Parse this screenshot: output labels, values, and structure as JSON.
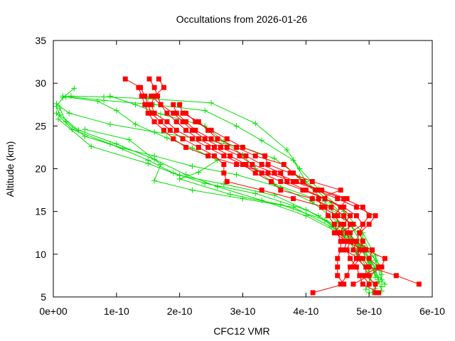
{
  "chart_data": {
    "type": "line",
    "title": "Occultations from 2026-01-26",
    "xlabel": "CFC12 VMR",
    "ylabel": "Altitude (km)",
    "xlim": [
      0,
      6e-10
    ],
    "ylim": [
      5,
      35
    ],
    "x_ticks": [
      0,
      1e-10,
      2e-10,
      3e-10,
      4e-10,
      5e-10,
      6e-10
    ],
    "x_tick_labels": [
      "0e+00",
      "1e-10",
      "2e-10",
      "3e-10",
      "4e-10",
      "5e-10",
      "6e-10"
    ],
    "y_ticks": [
      5,
      10,
      15,
      20,
      25,
      30,
      35
    ],
    "y_tick_labels": [
      "5",
      "10",
      "15",
      "20",
      "25",
      "30",
      "35"
    ],
    "grid": false,
    "colors": {
      "red": "#ff0000",
      "green": "#00e000"
    },
    "red_series": [
      [
        [
          1.14e-10,
          30.5
        ],
        [
          1.38e-10,
          29.5
        ],
        [
          1.45e-10,
          28.5
        ],
        [
          1.5e-10,
          27.5
        ],
        [
          1.55e-10,
          26.5
        ],
        [
          1.7e-10,
          25.5
        ],
        [
          1.85e-10,
          24.5
        ],
        [
          2.05e-10,
          23.5
        ],
        [
          2.3e-10,
          22.5
        ],
        [
          2.55e-10,
          21.5
        ],
        [
          2.7e-10,
          20.5
        ],
        [
          2.7e-10,
          19.5
        ],
        [
          2.75e-10,
          18.5
        ],
        [
          3.3e-10,
          17.5
        ],
        [
          3.8e-10,
          16.5
        ],
        [
          4.3e-10,
          15.5
        ],
        [
          4.35e-10,
          14.5
        ],
        [
          4.45e-10,
          13.5
        ],
        [
          4.5e-10,
          12.5
        ],
        [
          4.55e-10,
          11.5
        ],
        [
          4.55e-10,
          10.5
        ],
        [
          4.5e-10,
          9.5
        ],
        [
          4.5e-10,
          8.5
        ],
        [
          4.5e-10,
          7.5
        ],
        [
          4.6e-10,
          6.5
        ],
        [
          4.11e-10,
          5.5
        ]
      ],
      [
        [
          1.52e-10,
          30.5
        ],
        [
          1.6e-10,
          29.5
        ],
        [
          1.65e-10,
          28.5
        ],
        [
          1.7e-10,
          27.5
        ],
        [
          1.8e-10,
          26.5
        ],
        [
          1.95e-10,
          25.5
        ],
        [
          2.1e-10,
          24.5
        ],
        [
          2.3e-10,
          23.5
        ],
        [
          2.55e-10,
          22.5
        ],
        [
          2.8e-10,
          21.5
        ],
        [
          3.05e-10,
          20.5
        ],
        [
          3.3e-10,
          19.5
        ],
        [
          3.6e-10,
          18.5
        ],
        [
          3.95e-10,
          17.5
        ],
        [
          4.3e-10,
          16.5
        ],
        [
          4.6e-10,
          15.5
        ],
        [
          4.8e-10,
          14.5
        ],
        [
          4.9e-10,
          13.5
        ],
        [
          4.85e-10,
          12.5
        ],
        [
          4.8e-10,
          11.5
        ],
        [
          4.75e-10,
          10.5
        ],
        [
          4.9e-10,
          9.5
        ],
        [
          5e-10,
          8.5
        ],
        [
          5.43e-10,
          7.5
        ],
        [
          5.79e-10,
          6.5
        ]
      ],
      [
        [
          1.67e-10,
          30.5
        ],
        [
          1.75e-10,
          29.5
        ],
        [
          1.6e-10,
          28.5
        ],
        [
          1.55e-10,
          27.5
        ],
        [
          1.6e-10,
          26.5
        ],
        [
          1.8e-10,
          25.5
        ],
        [
          1.95e-10,
          24.5
        ],
        [
          2.2e-10,
          23.5
        ],
        [
          2.45e-10,
          22.5
        ],
        [
          2.7e-10,
          21.5
        ],
        [
          3e-10,
          20.5
        ],
        [
          3.2e-10,
          19.5
        ],
        [
          3.45e-10,
          18.5
        ],
        [
          3.6e-10,
          17.5
        ],
        [
          4.1e-10,
          16.5
        ],
        [
          4.4e-10,
          15.5
        ],
        [
          4.6e-10,
          14.5
        ],
        [
          4.7e-10,
          13.5
        ],
        [
          4.65e-10,
          12.5
        ],
        [
          4.7e-10,
          11.5
        ],
        [
          4.65e-10,
          10.5
        ],
        [
          4.7e-10,
          9.5
        ],
        [
          4.8e-10,
          8.5
        ],
        [
          4.85e-10,
          7.5
        ],
        [
          4.9e-10,
          6.5
        ],
        [
          5.15e-10,
          5.5
        ]
      ],
      [
        [
          1.35e-10,
          29.5
        ],
        [
          1.4e-10,
          28.5
        ],
        [
          1.45e-10,
          27.5
        ],
        [
          1.5e-10,
          26.5
        ],
        [
          1.6e-10,
          25.5
        ],
        [
          1.75e-10,
          24.5
        ],
        [
          1.9e-10,
          23.5
        ],
        [
          2.1e-10,
          22.5
        ],
        [
          2.45e-10,
          21.5
        ],
        [
          2.9e-10,
          20.5
        ],
        [
          3.4e-10,
          19.5
        ],
        [
          3.8e-10,
          18.5
        ],
        [
          4.2e-10,
          17.5
        ],
        [
          4.6e-10,
          16.5
        ],
        [
          4.9e-10,
          15.5
        ],
        [
          5e-10,
          14.5
        ],
        [
          4.9e-10,
          13.5
        ],
        [
          4.7e-10,
          12.5
        ],
        [
          4.75e-10,
          11.5
        ],
        [
          5.05e-10,
          10.5
        ],
        [
          5e-10,
          9.5
        ],
        [
          5.15e-10,
          8.5
        ],
        [
          4.9e-10,
          7.5
        ],
        [
          5e-10,
          6.5
        ]
      ],
      [
        [
          1.9e-10,
          27.5
        ],
        [
          1.95e-10,
          26.5
        ],
        [
          2.1e-10,
          25.5
        ],
        [
          2.25e-10,
          24.5
        ],
        [
          2.5e-10,
          23.5
        ],
        [
          2.75e-10,
          22.5
        ],
        [
          3.05e-10,
          21.5
        ],
        [
          3.3e-10,
          20.5
        ],
        [
          3.6e-10,
          19.5
        ],
        [
          3.7e-10,
          18.5
        ],
        [
          4e-10,
          17.5
        ],
        [
          4.3e-10,
          16.5
        ],
        [
          4.55e-10,
          15.5
        ],
        [
          4.7e-10,
          14.5
        ],
        [
          4.6e-10,
          13.5
        ],
        [
          4.55e-10,
          12.5
        ],
        [
          4.6e-10,
          11.5
        ],
        [
          4.95e-10,
          10.5
        ],
        [
          5.25e-10,
          9.5
        ],
        [
          5.2e-10,
          8.5
        ],
        [
          5e-10,
          7.5
        ],
        [
          4.75e-10,
          6.5
        ]
      ],
      [
        [
          2e-10,
          27.5
        ],
        [
          2.05e-10,
          26.5
        ],
        [
          2.3e-10,
          25.5
        ],
        [
          2.45e-10,
          24.5
        ],
        [
          2.6e-10,
          23.5
        ],
        [
          2.9e-10,
          22.5
        ],
        [
          3.2e-10,
          21.5
        ],
        [
          3.65e-10,
          20.5
        ],
        [
          3.8e-10,
          19.5
        ],
        [
          3.95e-10,
          18.5
        ],
        [
          4.15e-10,
          17.5
        ],
        [
          4.5e-10,
          16.5
        ],
        [
          4.8e-10,
          15.5
        ],
        [
          5.1e-10,
          14.5
        ],
        [
          5e-10,
          13.5
        ],
        [
          4.85e-10,
          12.5
        ],
        [
          4.9e-10,
          11.5
        ],
        [
          4.85e-10,
          10.5
        ],
        [
          4.8e-10,
          9.5
        ],
        [
          4.95e-10,
          8.5
        ],
        [
          4.95e-10,
          7.5
        ],
        [
          5.1e-10,
          6.5
        ],
        [
          5.1e-10,
          5.5
        ]
      ],
      [
        [
          1.55e-10,
          28.5
        ],
        [
          1.7e-10,
          27.5
        ],
        [
          1.9e-10,
          26.5
        ],
        [
          2.05e-10,
          25.5
        ],
        [
          2.2e-10,
          24.5
        ],
        [
          2.4e-10,
          23.5
        ],
        [
          2.65e-10,
          22.5
        ],
        [
          2.95e-10,
          21.5
        ],
        [
          3.15e-10,
          20.5
        ],
        [
          3.5e-10,
          19.5
        ],
        [
          3.85e-10,
          18.5
        ],
        [
          4.25e-10,
          17.5
        ],
        [
          4.65e-10,
          16.5
        ],
        [
          4.55e-10,
          15.5
        ],
        [
          4.45e-10,
          14.5
        ],
        [
          4.55e-10,
          13.5
        ],
        [
          4.45e-10,
          12.5
        ],
        [
          4.65e-10,
          11.5
        ],
        [
          4.9e-10,
          10.5
        ],
        [
          4.8e-10,
          9.5
        ],
        [
          4.7e-10,
          8.5
        ],
        [
          4.65e-10,
          7.5
        ],
        [
          4.55e-10,
          6.5
        ]
      ],
      [
        [
          2.1e-10,
          26.5
        ],
        [
          2.25e-10,
          25.5
        ],
        [
          2.5e-10,
          24.5
        ],
        [
          2.75e-10,
          23.5
        ],
        [
          3e-10,
          22.5
        ],
        [
          3.35e-10,
          21.5
        ],
        [
          3.4e-10,
          20.5
        ],
        [
          3.75e-10,
          19.5
        ],
        [
          4.1e-10,
          18.5
        ],
        [
          4.55e-10,
          17.5
        ],
        [
          4.2e-10,
          16.5
        ],
        [
          4.25e-10,
          15.5
        ],
        [
          4.5e-10,
          14.5
        ],
        [
          4.75e-10,
          13.5
        ],
        [
          4.55e-10,
          12.5
        ],
        [
          4.65e-10,
          11.5
        ],
        [
          4.6e-10,
          10.5
        ],
        [
          4.85e-10,
          9.5
        ],
        [
          4.75e-10,
          8.5
        ]
      ]
    ],
    "green_series": [
      [
        [
          3.3e-11,
          29.4
        ],
        [
          1.5e-11,
          28.3
        ],
        [
          5e-12,
          27.3
        ],
        [
          1e-11,
          26.3
        ],
        [
          4e-11,
          24.5
        ],
        [
          1e-10,
          22.9
        ],
        [
          1.6e-10,
          21.1
        ],
        [
          2.1e-10,
          19.3
        ],
        [
          2.6e-10,
          17.9
        ],
        [
          3.3e-10,
          16.3
        ],
        [
          4e-10,
          14.5
        ],
        [
          4.5e-10,
          12.6
        ],
        [
          4.9e-10,
          10.5
        ],
        [
          5.1e-10,
          8.3
        ],
        [
          5.15e-10,
          6.8
        ],
        [
          5.05e-10,
          5.5
        ]
      ],
      [
        [
          1.5e-11,
          28.5
        ],
        [
          8e-11,
          28.0
        ],
        [
          1.6e-10,
          27.5
        ],
        [
          2.4e-10,
          26.8
        ],
        [
          2.9e-10,
          25.0
        ],
        [
          3.3e-10,
          23.3
        ],
        [
          3.8e-10,
          21.0
        ],
        [
          4e-10,
          18.5
        ],
        [
          4.4e-10,
          16.0
        ],
        [
          4.7e-10,
          13.5
        ],
        [
          4.9e-10,
          11.0
        ],
        [
          5.2e-10,
          8.5
        ],
        [
          5.2e-10,
          6.2
        ]
      ],
      [
        [
          5e-12,
          27.6
        ],
        [
          2.5e-11,
          26.5
        ],
        [
          9e-11,
          25.2
        ],
        [
          1.6e-10,
          24.3
        ],
        [
          2.3e-10,
          23.5
        ],
        [
          3e-10,
          22.5
        ],
        [
          3.5e-10,
          21.2
        ],
        [
          3.9e-10,
          19.0
        ],
        [
          4.3e-10,
          16.2
        ],
        [
          4.6e-10,
          13.0
        ],
        [
          4.8e-10,
          10.0
        ],
        [
          5e-10,
          7.5
        ],
        [
          5.1e-10,
          6.0
        ]
      ],
      [
        [
          1e-11,
          27.1
        ],
        [
          2e-11,
          25.5
        ],
        [
          5e-11,
          23.8
        ],
        [
          1.1e-10,
          22.4
        ],
        [
          1.6e-10,
          21.5
        ],
        [
          2.2e-10,
          20.3
        ],
        [
          2.9e-10,
          19.3
        ],
        [
          3.6e-10,
          17.8
        ],
        [
          4.1e-10,
          16.1
        ],
        [
          4.5e-10,
          13.8
        ],
        [
          4.8e-10,
          11.5
        ],
        [
          5e-10,
          9.0
        ],
        [
          5.15e-10,
          7.0
        ],
        [
          5.2e-10,
          5.7
        ]
      ],
      [
        [
          2.8e-11,
          28.5
        ],
        [
          8e-11,
          28.4
        ],
        [
          1.5e-10,
          28.2
        ],
        [
          2.5e-10,
          27.7
        ],
        [
          3.2e-10,
          25.3
        ],
        [
          3.7e-10,
          22.2
        ],
        [
          3.9e-10,
          20.0
        ],
        [
          4.2e-10,
          17.6
        ],
        [
          4.6e-10,
          15.0
        ],
        [
          4.9e-10,
          12.5
        ],
        [
          5.1e-10,
          9.8
        ],
        [
          5.2e-10,
          7.6
        ]
      ],
      [
        [
          5e-12,
          26.5
        ],
        [
          3e-11,
          24.6
        ],
        [
          9e-11,
          22.9
        ],
        [
          1.5e-10,
          21.0
        ],
        [
          1.9e-10,
          19.5
        ],
        [
          2.4e-10,
          18.3
        ],
        [
          3.2e-10,
          17.1
        ],
        [
          4e-10,
          15.2
        ],
        [
          4.6e-10,
          12.9
        ],
        [
          4.9e-10,
          10.8
        ],
        [
          5.1e-10,
          8.4
        ],
        [
          4.95e-10,
          5.9
        ]
      ],
      [
        [
          2e-11,
          28.4
        ],
        [
          7e-11,
          27.9
        ],
        [
          1e-10,
          26.8
        ],
        [
          1.3e-10,
          25.2
        ],
        [
          1.8e-10,
          23.6
        ],
        [
          2.2e-10,
          22.4
        ],
        [
          2.6e-10,
          21.0
        ],
        [
          2.3e-10,
          19.6
        ],
        [
          2e-10,
          18.8
        ],
        [
          2.8e-10,
          17.0
        ],
        [
          3.6e-10,
          15.8
        ],
        [
          4.3e-10,
          14.0
        ],
        [
          4.7e-10,
          12.0
        ],
        [
          5e-10,
          9.5
        ],
        [
          5.1e-10,
          7.3
        ]
      ],
      [
        [
          5e-11,
          24.6
        ],
        [
          1.2e-10,
          23.4
        ],
        [
          1.7e-10,
          20.5
        ],
        [
          1.6e-10,
          18.6
        ],
        [
          2.2e-10,
          17.5
        ],
        [
          3e-10,
          16.5
        ],
        [
          3.8e-10,
          15.5
        ],
        [
          4.4e-10,
          13.2
        ],
        [
          4.85e-10,
          11.0
        ],
        [
          5e-10,
          8.8
        ],
        [
          5.25e-10,
          6.5
        ]
      ],
      [
        [
          8e-12,
          25.8
        ],
        [
          6e-11,
          22.6
        ],
        [
          1.5e-10,
          20.6
        ],
        [
          2e-10,
          19.2
        ],
        [
          2.7e-10,
          18.2
        ],
        [
          3.5e-10,
          16.9
        ],
        [
          4.2e-10,
          14.5
        ],
        [
          4.6e-10,
          12.2
        ],
        [
          4.8e-10,
          10.4
        ],
        [
          5e-10,
          8.0
        ],
        [
          5e-10,
          5.5
        ]
      ],
      [
        [
          9e-11,
          28.5
        ],
        [
          1.3e-10,
          27.5
        ],
        [
          1.7e-10,
          26.4
        ],
        [
          2.4e-10,
          25.0
        ],
        [
          2.7e-10,
          23.2
        ],
        [
          3e-10,
          21.6
        ],
        [
          3.2e-10,
          20.0
        ],
        [
          3.5e-10,
          18.2
        ],
        [
          4.1e-10,
          16.6
        ],
        [
          4.6e-10,
          14.3
        ],
        [
          4.9e-10,
          11.8
        ],
        [
          5.1e-10,
          9.3
        ],
        [
          5.2e-10,
          7.0
        ]
      ]
    ]
  }
}
